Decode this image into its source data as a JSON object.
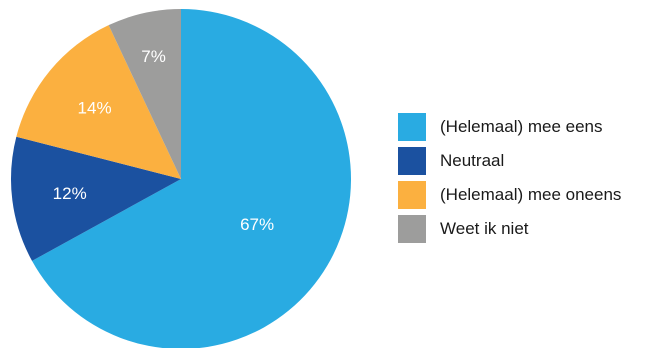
{
  "chart_data": {
    "type": "pie",
    "title": "",
    "slices": [
      {
        "label": "(Helemaal) mee eens",
        "value": 67,
        "display": "67%",
        "color": "#29abe2"
      },
      {
        "label": "Neutraal",
        "value": 12,
        "display": "12%",
        "color": "#1b51a0"
      },
      {
        "label": "(Helemaal) mee oneens",
        "value": 14,
        "display": "14%",
        "color": "#fbb040"
      },
      {
        "label": "Weet ik niet",
        "value": 7,
        "display": "7%",
        "color": "#9d9d9c"
      }
    ],
    "start": "top",
    "direction": "clockwise",
    "legend_position": "right"
  }
}
